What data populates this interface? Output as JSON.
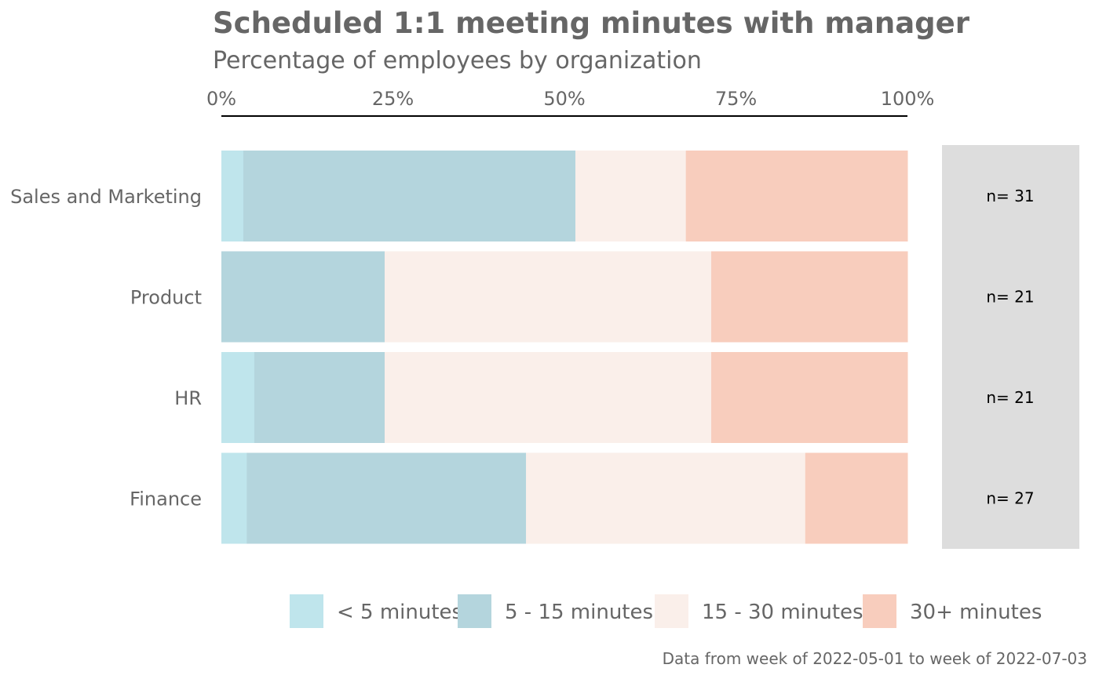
{
  "chart_data": {
    "type": "bar",
    "orientation": "horizontal",
    "stacked": true,
    "title": "Scheduled 1:1 meeting minutes with manager",
    "subtitle": "Percentage of employees by organization",
    "caption": "Data from week of 2022-05-01 to week of 2022-07-03",
    "x_ticks": [
      "0%",
      "25%",
      "50%",
      "75%",
      "100%"
    ],
    "xlim": [
      0,
      100
    ],
    "categories": [
      "Sales and Marketing",
      "Product",
      "HR",
      "Finance"
    ],
    "n_labels": [
      "n= 31",
      "n= 21",
      "n= 21",
      "n= 27"
    ],
    "series": [
      {
        "name": "< 5 minutes",
        "color": "#BFE5EC",
        "values": [
          3.2,
          0,
          4.8,
          3.7
        ]
      },
      {
        "name": "5 - 15 minutes",
        "color": "#B4D5DD",
        "values": [
          48.4,
          23.8,
          19.0,
          40.7
        ]
      },
      {
        "name": "15 - 30 minutes",
        "color": "#FAEFEA",
        "values": [
          16.1,
          47.6,
          47.6,
          40.7
        ]
      },
      {
        "name": "30+ minutes",
        "color": "#F8CDBD",
        "values": [
          32.3,
          28.6,
          28.6,
          14.9
        ]
      }
    ],
    "legend_position": "bottom",
    "grid": false
  }
}
